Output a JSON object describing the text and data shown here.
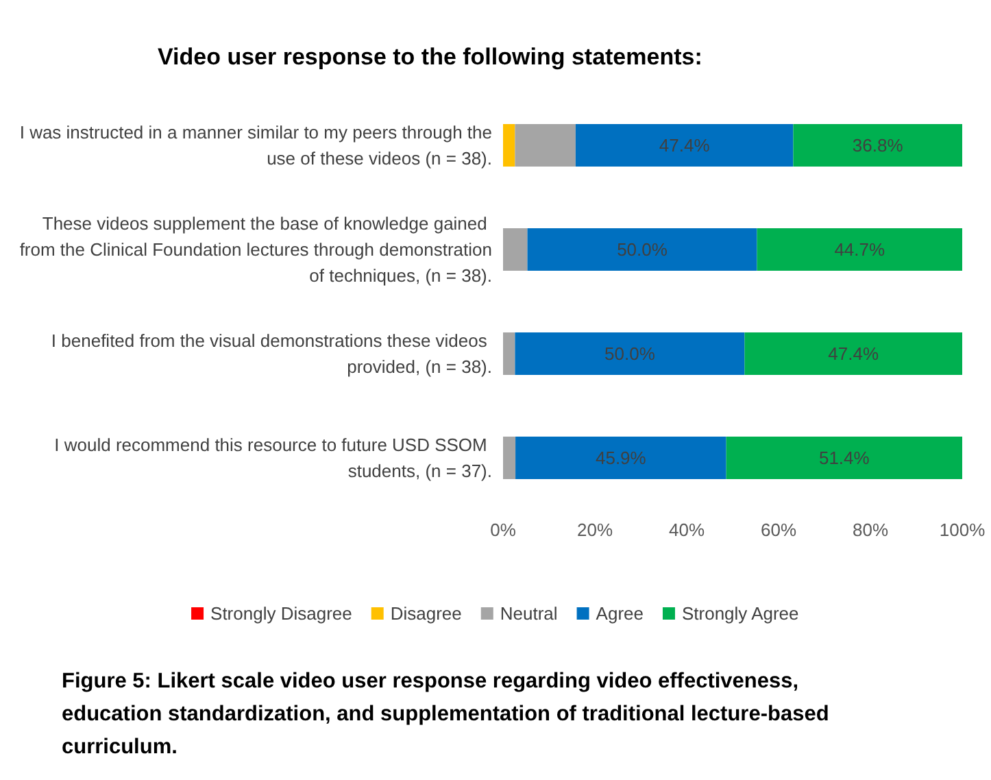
{
  "chart_data": {
    "type": "bar",
    "orientation": "horizontal",
    "stacked": true,
    "title": "Video user response to the following statements:",
    "categories": [
      "I was instructed in a manner similar to my peers through the use of these videos (n = 38).",
      "These videos supplement the base of knowledge gained from the Clinical Foundation lectures through demonstration of techniques, (n = 38).",
      "I benefited from the visual demonstrations these videos provided, (n = 38).",
      "I would recommend this resource to future USD SSOM students, (n = 37)."
    ],
    "series": [
      {
        "name": "Strongly Disagree",
        "color": "#ff0000",
        "values": [
          0,
          0,
          0,
          0
        ]
      },
      {
        "name": "Disagree",
        "color": "#ffc000",
        "values": [
          2.6,
          0,
          0,
          0
        ]
      },
      {
        "name": "Neutral",
        "color": "#a5a5a5",
        "values": [
          13.2,
          5.3,
          2.6,
          2.7
        ]
      },
      {
        "name": "Agree",
        "color": "#0070c0",
        "values": [
          47.4,
          50.0,
          50.0,
          45.9
        ],
        "value_labels": [
          "47.4%",
          "50.0%",
          "50.0%",
          "45.9%"
        ]
      },
      {
        "name": "Strongly Agree",
        "color": "#00b050",
        "values": [
          36.8,
          44.7,
          47.4,
          51.4
        ],
        "value_labels": [
          "36.8%",
          "44.7%",
          "47.4%",
          "51.4%"
        ]
      }
    ],
    "xlim": [
      0,
      100
    ],
    "xticks": [
      {
        "value": 0,
        "label": "0%"
      },
      {
        "value": 20,
        "label": "20%"
      },
      {
        "value": 40,
        "label": "40%"
      },
      {
        "value": 60,
        "label": "60%"
      },
      {
        "value": 80,
        "label": "80%"
      },
      {
        "value": 100,
        "label": "100%"
      }
    ],
    "grid": false,
    "legend": "bottom",
    "annotations": [
      "Figure 5: Likert scale video user response regarding video effectiveness, education standardization, and supplementation of traditional lecture-based curriculum."
    ]
  }
}
